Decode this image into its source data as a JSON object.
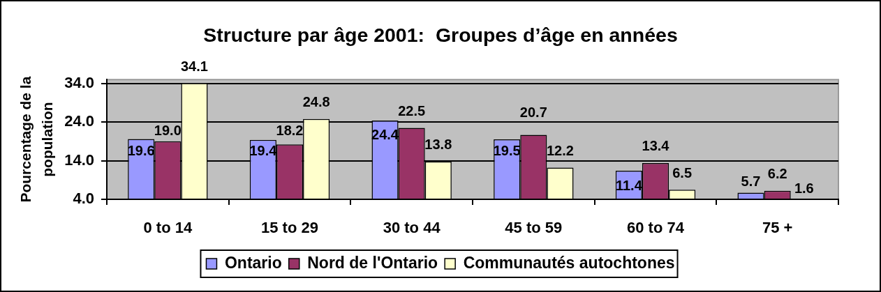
{
  "chart_data": {
    "type": "bar",
    "title": "Structure par âge 2001:  Groupes d’âge en années",
    "ylabel": "Pourcentage de la population",
    "categories": [
      "0 to 14",
      "15 to 29",
      "30 to 44",
      "45 to 59",
      "60 to 74",
      "75 +"
    ],
    "series": [
      {
        "name": "Ontario",
        "color": "#9999ff",
        "values": [
          19.6,
          19.4,
          24.4,
          19.5,
          11.4,
          5.7
        ],
        "value_labels": [
          "19.6",
          "19.4",
          "24.4",
          "19.5",
          "11.4",
          "5.7"
        ]
      },
      {
        "name": "Nord de l'Ontario",
        "color": "#993366",
        "values": [
          19.0,
          18.2,
          22.5,
          20.7,
          13.4,
          6.2
        ],
        "value_labels": [
          "19.0",
          "18.2",
          "22.5",
          "20.7",
          "13.4",
          "6.2"
        ]
      },
      {
        "name": "Communautés autochtones",
        "color": "#ffffcc",
        "values": [
          34.1,
          24.8,
          13.8,
          12.2,
          6.5,
          null
        ],
        "value_labels": [
          "34.1",
          "24.8",
          "13.8",
          "12.2",
          "6.5",
          "1.6"
        ]
      }
    ],
    "ylim": [
      4,
      35
    ],
    "yticks": [
      {
        "value": 4,
        "label": "4.0"
      },
      {
        "value": 14,
        "label": "14.0"
      },
      {
        "value": 24,
        "label": "24.0"
      },
      {
        "value": 34,
        "label": "34.0"
      }
    ],
    "grid": "y",
    "legend": "bottom"
  }
}
